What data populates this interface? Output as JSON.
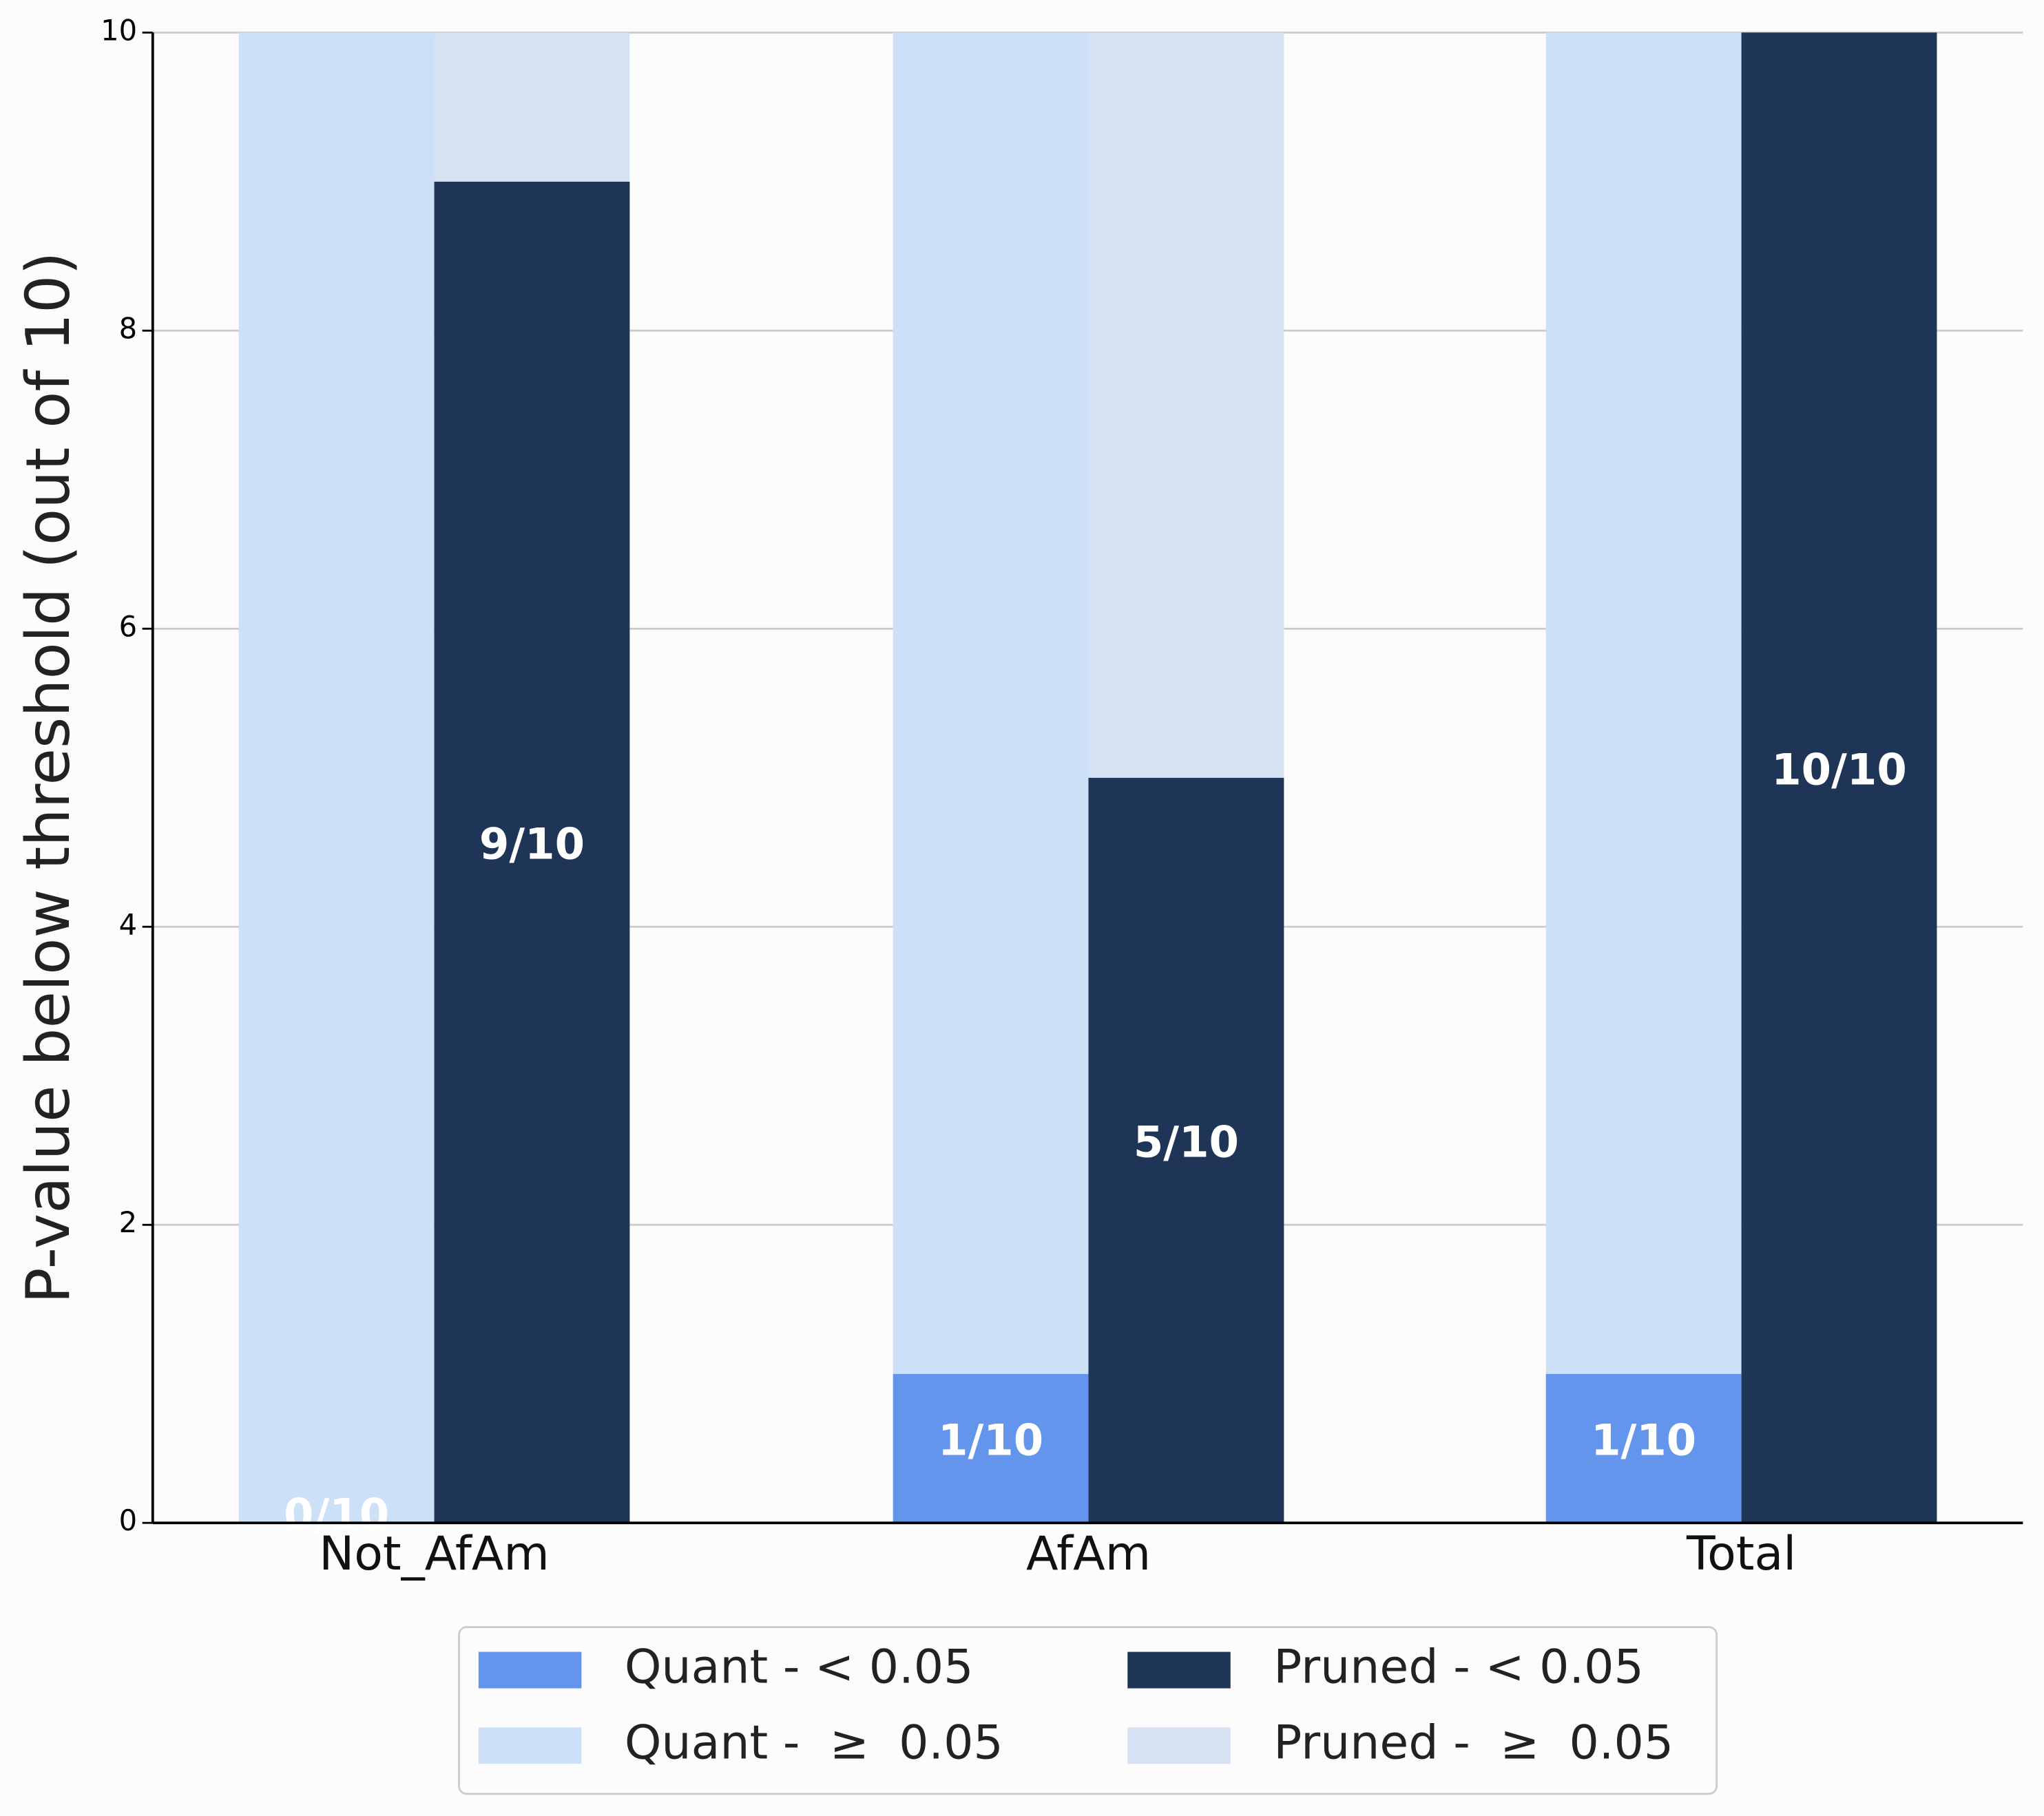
{
  "chart_data": {
    "type": "bar",
    "y_label": "P-value below threshold (out of 10)",
    "categories": [
      "Not_AfAm",
      "AfAm",
      "Total"
    ],
    "series": [
      {
        "name": "Quant - < 0.05",
        "color": "#6495ed",
        "values": [
          0,
          1,
          1
        ],
        "value_labels": [
          "0/10",
          "1/10",
          "1/10"
        ]
      },
      {
        "name": "Quant -  ≥  0.05",
        "color": "#cce0f8",
        "values": [
          10,
          9,
          9
        ]
      },
      {
        "name": "Pruned - < 0.05",
        "color": "#1f3557",
        "values": [
          9,
          5,
          10
        ],
        "value_labels": [
          "9/10",
          "5/10",
          "10/10"
        ]
      },
      {
        "name": "Pruned -  ≥  0.05",
        "color": "#d6e2f4",
        "values": [
          1,
          5,
          0
        ]
      }
    ],
    "ylim": [
      0,
      10
    ],
    "yticks": [
      0,
      2,
      4,
      6,
      8,
      10
    ],
    "grid": true
  }
}
